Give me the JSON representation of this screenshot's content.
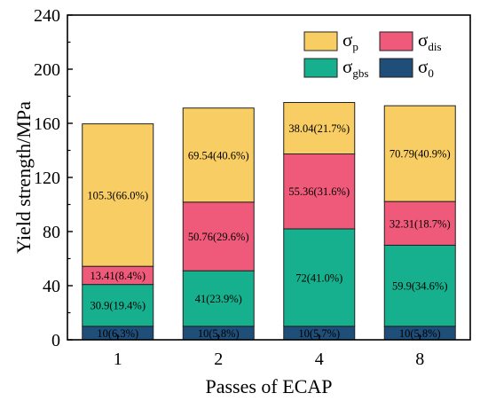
{
  "chart_data": {
    "type": "bar",
    "stacked": true,
    "categories": [
      "1",
      "2",
      "4",
      "8"
    ],
    "xlabel": "Passes of ECAP",
    "ylabel": "Yield strength/MPa",
    "ylim": [
      0,
      240
    ],
    "yticks": [
      "0",
      "40",
      "80",
      "120",
      "160",
      "200",
      "240"
    ],
    "grid": false,
    "legend_position": "top-right",
    "series": [
      {
        "name": "σ0",
        "symbol": "σ",
        "sub": "0",
        "color": "#1f4e79",
        "values": [
          10,
          10,
          10,
          10
        ],
        "labels": [
          "10(6.3%)",
          "10(5.8%)",
          "10(5.7%)",
          "10(5.8%)"
        ]
      },
      {
        "name": "σgbs",
        "symbol": "σ",
        "sub": "gbs",
        "color": "#17b08e",
        "values": [
          30.9,
          41,
          72,
          59.9
        ],
        "labels": [
          "30.9(19.4%)",
          "41(23.9%)",
          "72(41.0%)",
          "59.9(34.6%)"
        ]
      },
      {
        "name": "σdis",
        "symbol": "σ",
        "sub": "dis",
        "color": "#ef5a7a",
        "values": [
          13.41,
          50.76,
          55.36,
          32.31
        ],
        "labels": [
          "13.41(8.4%)",
          "50.76(29.6%)",
          "55.36(31.6%)",
          "32.31(18.7%)"
        ]
      },
      {
        "name": "σp",
        "symbol": "σ",
        "sub": "p",
        "color": "#f8cd63",
        "values": [
          105.3,
          69.54,
          38.04,
          70.79
        ],
        "labels": [
          "105.3(66.0%)",
          "69.54(40.6%)",
          "38.04(21.7%)",
          "70.79(40.9%)"
        ]
      }
    ],
    "legend_order": [
      3,
      2,
      1,
      0
    ]
  }
}
